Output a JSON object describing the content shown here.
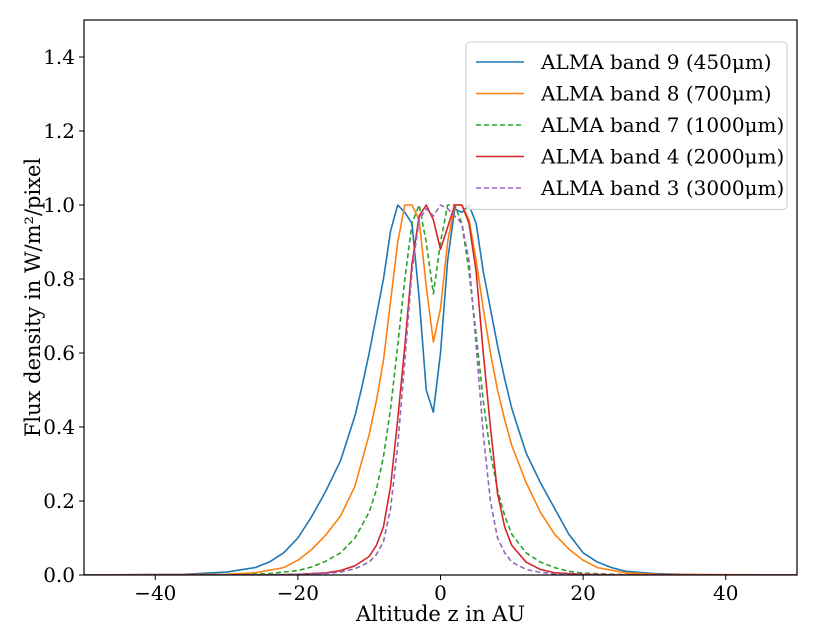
{
  "chart_data": {
    "type": "line",
    "title": "",
    "xlabel": "Altitude z in AU",
    "ylabel": "Flux density in W/m²/pixel",
    "xlim": [
      -50,
      50
    ],
    "ylim": [
      0.0,
      1.5
    ],
    "x_ticks": [
      -40,
      -20,
      0,
      20,
      40
    ],
    "x_tick_labels": [
      "−40",
      "−20",
      "0",
      "20",
      "40"
    ],
    "y_ticks": [
      0.0,
      0.2,
      0.4,
      0.6,
      0.8,
      1.0,
      1.2,
      1.4
    ],
    "y_tick_labels": [
      "0.0",
      "0.2",
      "0.4",
      "0.6",
      "0.8",
      "1.0",
      "1.2",
      "1.4"
    ],
    "grid": false,
    "legend_position": "top-right",
    "series": [
      {
        "name": "ALMA band 9 (450μm)",
        "color": "#1f77b4",
        "dash": "solid",
        "x": [
          -50,
          -36,
          -30,
          -26,
          -24,
          -22,
          -20,
          -18,
          -16,
          -14,
          -12,
          -11,
          -10,
          -9,
          -8,
          -7,
          -6,
          -5,
          -4,
          -3,
          -2,
          -1,
          0,
          1,
          2,
          3,
          4,
          5,
          6,
          7,
          8,
          9,
          10,
          11,
          12,
          14,
          16,
          18,
          20,
          22,
          24,
          26,
          30,
          36,
          50
        ],
        "y": [
          0.0,
          0.002,
          0.008,
          0.02,
          0.035,
          0.06,
          0.1,
          0.16,
          0.23,
          0.31,
          0.43,
          0.51,
          0.6,
          0.7,
          0.8,
          0.93,
          1.0,
          0.98,
          0.95,
          0.75,
          0.5,
          0.44,
          0.6,
          0.85,
          0.99,
          0.98,
          1.0,
          0.95,
          0.82,
          0.72,
          0.62,
          0.53,
          0.45,
          0.39,
          0.33,
          0.25,
          0.18,
          0.11,
          0.06,
          0.035,
          0.02,
          0.01,
          0.004,
          0.001,
          0.0
        ]
      },
      {
        "name": "ALMA band 8 (700μm)",
        "color": "#ff7f0e",
        "dash": "solid",
        "x": [
          -50,
          -30,
          -26,
          -22,
          -20,
          -18,
          -16,
          -14,
          -12,
          -10,
          -9,
          -8,
          -7,
          -6,
          -5,
          -4,
          -3,
          -2,
          -1,
          0,
          1,
          2,
          3,
          4,
          5,
          6,
          7,
          8,
          9,
          10,
          12,
          14,
          16,
          18,
          20,
          22,
          26,
          30,
          50
        ],
        "y": [
          0.0,
          0.002,
          0.006,
          0.02,
          0.04,
          0.07,
          0.11,
          0.16,
          0.24,
          0.38,
          0.47,
          0.58,
          0.74,
          0.9,
          1.0,
          1.0,
          0.96,
          0.78,
          0.63,
          0.72,
          0.9,
          1.0,
          1.0,
          0.96,
          0.85,
          0.72,
          0.6,
          0.5,
          0.42,
          0.35,
          0.25,
          0.17,
          0.11,
          0.07,
          0.04,
          0.02,
          0.006,
          0.002,
          0.0
        ]
      },
      {
        "name": "ALMA band 7 (1000μm)",
        "color": "#2ca02c",
        "dash": "dashed",
        "x": [
          -50,
          -28,
          -24,
          -20,
          -18,
          -16,
          -14,
          -12,
          -10,
          -9,
          -8,
          -7,
          -6,
          -5,
          -4,
          -3,
          -2,
          -1,
          0,
          1,
          2,
          3,
          4,
          5,
          6,
          7,
          8,
          9,
          10,
          12,
          14,
          16,
          18,
          20,
          24,
          28,
          50
        ],
        "y": [
          0.0,
          0.001,
          0.004,
          0.012,
          0.022,
          0.038,
          0.06,
          0.1,
          0.17,
          0.23,
          0.32,
          0.45,
          0.62,
          0.8,
          0.95,
          1.0,
          0.9,
          0.76,
          0.9,
          1.0,
          1.0,
          0.95,
          0.82,
          0.65,
          0.47,
          0.33,
          0.23,
          0.16,
          0.11,
          0.06,
          0.035,
          0.02,
          0.01,
          0.005,
          0.002,
          0.0005,
          0.0
        ]
      },
      {
        "name": "ALMA band 4 (2000μm)",
        "color": "#d62728",
        "dash": "solid",
        "x": [
          -50,
          -24,
          -20,
          -16,
          -14,
          -12,
          -10,
          -9,
          -8,
          -7,
          -6,
          -5,
          -4,
          -3,
          -2,
          -1,
          0,
          1,
          2,
          3,
          4,
          5,
          6,
          7,
          8,
          9,
          10,
          12,
          14,
          16,
          20,
          24,
          50
        ],
        "y": [
          0.0,
          0.0005,
          0.002,
          0.006,
          0.012,
          0.025,
          0.05,
          0.08,
          0.13,
          0.24,
          0.42,
          0.62,
          0.84,
          0.97,
          1.0,
          0.96,
          0.88,
          0.94,
          1.0,
          1.0,
          0.95,
          0.82,
          0.6,
          0.4,
          0.22,
          0.13,
          0.08,
          0.035,
          0.015,
          0.006,
          0.002,
          0.0005,
          0.0
        ]
      },
      {
        "name": "ALMA band 3 (3000μm)",
        "color": "#9467bd",
        "dash": "dashed",
        "x": [
          -50,
          -24,
          -20,
          -16,
          -14,
          -12,
          -10,
          -9,
          -8,
          -7,
          -6,
          -5,
          -4,
          -3,
          -2,
          -1,
          0,
          1,
          2,
          3,
          4,
          5,
          6,
          7,
          8,
          9,
          10,
          12,
          14,
          16,
          20,
          24,
          50
        ],
        "y": [
          0.0,
          0.0004,
          0.0015,
          0.004,
          0.008,
          0.017,
          0.035,
          0.055,
          0.09,
          0.18,
          0.35,
          0.58,
          0.82,
          0.96,
          0.99,
          0.97,
          1.0,
          0.99,
          0.97,
          0.95,
          0.85,
          0.62,
          0.38,
          0.2,
          0.1,
          0.06,
          0.035,
          0.015,
          0.007,
          0.003,
          0.001,
          0.0003,
          0.0
        ]
      }
    ]
  }
}
